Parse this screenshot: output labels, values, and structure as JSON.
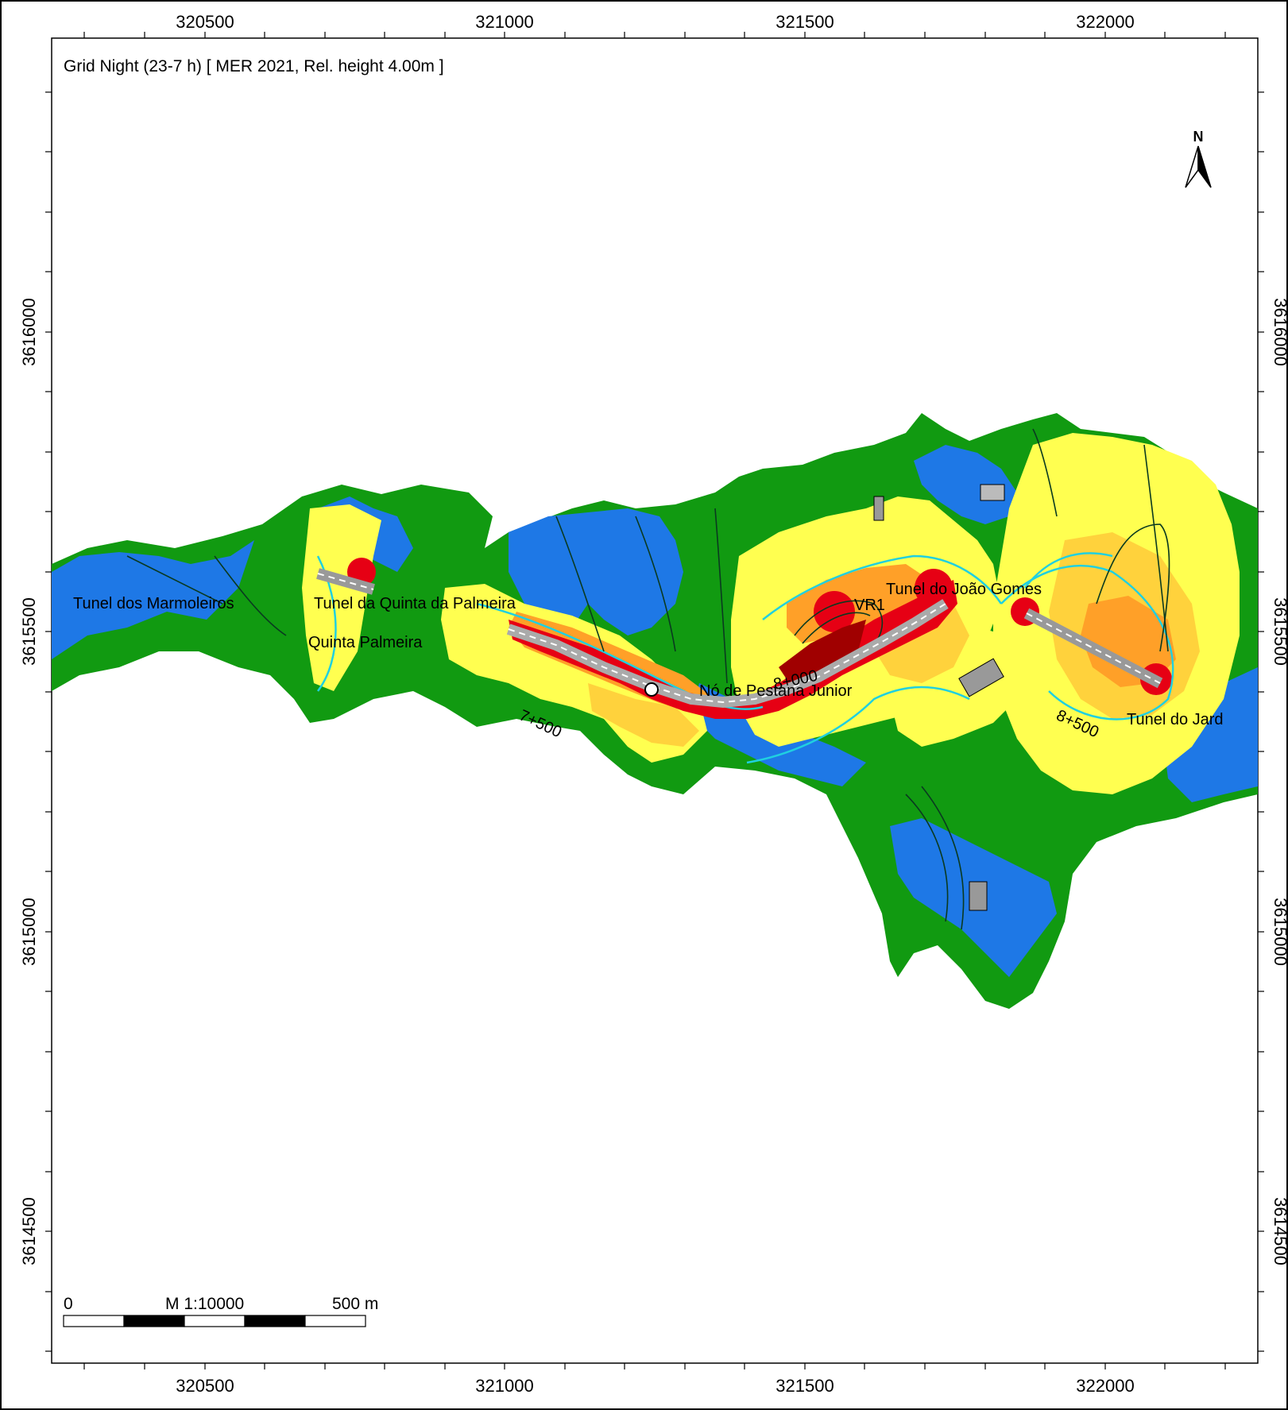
{
  "map": {
    "title": "Grid Night (23-7 h)  [ MER 2021, Rel. height  4.00m ]",
    "x_ticks": [
      "320500",
      "321000",
      "321500",
      "322000"
    ],
    "y_ticks": [
      "3616000",
      "3615500",
      "3615000",
      "3614500"
    ],
    "north_label": "N",
    "scale": {
      "zero_label": "0",
      "ratio_label": "M 1:10000",
      "distance_label": "500 m"
    },
    "place_labels": {
      "marmoleiros": "Tunel dos Marmoleiros",
      "quinta_palmeira_tunnel": "Tunel da Quinta da Palmeira",
      "quinta_palmeira": "Quinta Palmeira",
      "pestana_junior": "Nó de Pestana Junior",
      "gomes_tunnel": "Tunel do João Gomes",
      "jardim_tunnel": "Tunel do Jard",
      "chainage_7500": "7+500",
      "chainage_8000": "8+000",
      "chainage_8500": "8+500",
      "vr1": "VR1"
    },
    "noise_colors": {
      "green": "#119a11",
      "blue": "#1e78e6",
      "yellow": "#ffff50",
      "gold": "#ffd23c",
      "orange": "#ffa028",
      "red": "#e60014",
      "dark_red": "#a00000",
      "contour": "#20d0e0"
    }
  }
}
